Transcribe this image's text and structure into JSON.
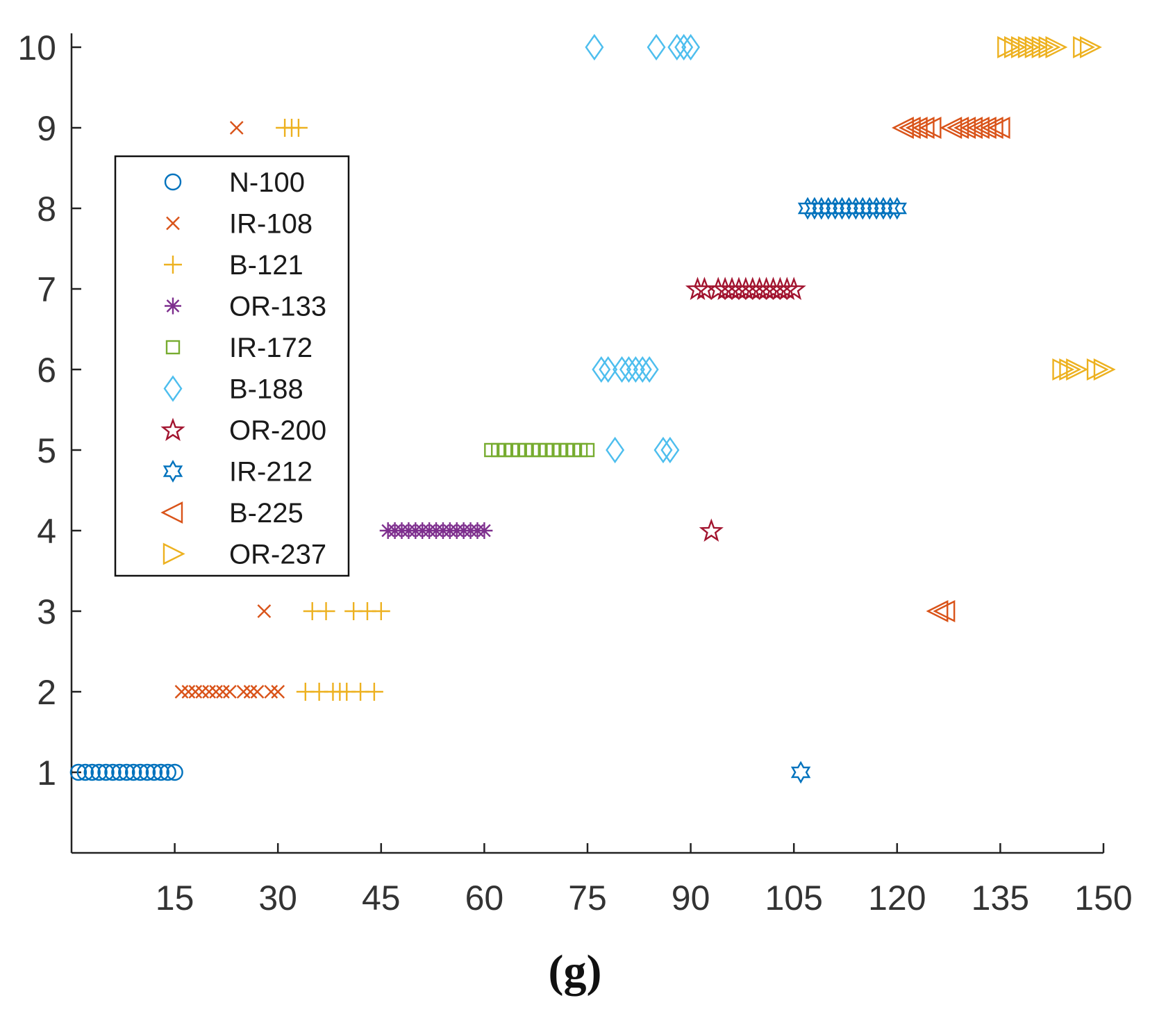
{
  "chart_data": {
    "type": "scatter",
    "title": "",
    "xlabel": "",
    "ylabel": "",
    "caption": "(g)",
    "xlim": [
      0,
      150
    ],
    "ylim": [
      0,
      10.5
    ],
    "xticks": [
      15,
      30,
      45,
      60,
      75,
      90,
      105,
      120,
      135,
      150
    ],
    "yticks": [
      1,
      2,
      3,
      4,
      5,
      6,
      7,
      8,
      9,
      10
    ],
    "grid": false,
    "legend_position": "upper-left",
    "series": [
      {
        "name": "N-100",
        "marker": "circle",
        "color": "#0072BD",
        "points": [
          [
            1,
            1
          ],
          [
            2,
            1
          ],
          [
            3,
            1
          ],
          [
            4,
            1
          ],
          [
            5,
            1
          ],
          [
            6,
            1
          ],
          [
            7,
            1
          ],
          [
            8,
            1
          ],
          [
            9,
            1
          ],
          [
            10,
            1
          ],
          [
            11,
            1
          ],
          [
            12,
            1
          ],
          [
            13,
            1
          ],
          [
            14,
            1
          ],
          [
            15,
            1
          ]
        ]
      },
      {
        "name": "IR-108",
        "marker": "x",
        "color": "#D95319",
        "points": [
          [
            16,
            2
          ],
          [
            17,
            2
          ],
          [
            18,
            2
          ],
          [
            19,
            2
          ],
          [
            20,
            2
          ],
          [
            21,
            2
          ],
          [
            22,
            2
          ],
          [
            23,
            2
          ],
          [
            24,
            9
          ],
          [
            25,
            2
          ],
          [
            26,
            2
          ],
          [
            27,
            2
          ],
          [
            28,
            3
          ],
          [
            29,
            2
          ],
          [
            30,
            2
          ]
        ]
      },
      {
        "name": "B-121",
        "marker": "plus",
        "color": "#EDB120",
        "points": [
          [
            31,
            9
          ],
          [
            32,
            9
          ],
          [
            33,
            9
          ],
          [
            34,
            2
          ],
          [
            35,
            3
          ],
          [
            36,
            2
          ],
          [
            37,
            3
          ],
          [
            38,
            2
          ],
          [
            39,
            2
          ],
          [
            40,
            2
          ],
          [
            41,
            3
          ],
          [
            42,
            2
          ],
          [
            43,
            3
          ],
          [
            44,
            2
          ],
          [
            45,
            3
          ]
        ]
      },
      {
        "name": "OR-133",
        "marker": "asterisk",
        "color": "#7E2F8E",
        "points": [
          [
            46,
            4
          ],
          [
            47,
            4
          ],
          [
            48,
            4
          ],
          [
            49,
            4
          ],
          [
            50,
            4
          ],
          [
            51,
            4
          ],
          [
            52,
            4
          ],
          [
            53,
            4
          ],
          [
            54,
            4
          ],
          [
            55,
            4
          ],
          [
            56,
            4
          ],
          [
            57,
            4
          ],
          [
            58,
            4
          ],
          [
            59,
            4
          ],
          [
            60,
            4
          ]
        ]
      },
      {
        "name": "IR-172",
        "marker": "square",
        "color": "#77AC30",
        "points": [
          [
            61,
            5
          ],
          [
            62,
            5
          ],
          [
            63,
            5
          ],
          [
            64,
            5
          ],
          [
            65,
            5
          ],
          [
            66,
            5
          ],
          [
            67,
            5
          ],
          [
            68,
            5
          ],
          [
            69,
            5
          ],
          [
            70,
            5
          ],
          [
            71,
            5
          ],
          [
            72,
            5
          ],
          [
            73,
            5
          ],
          [
            74,
            5
          ],
          [
            75,
            5
          ]
        ]
      },
      {
        "name": "B-188",
        "marker": "diamond",
        "color": "#4DBEEE",
        "points": [
          [
            76,
            10
          ],
          [
            77,
            6
          ],
          [
            78,
            6
          ],
          [
            79,
            5
          ],
          [
            80,
            6
          ],
          [
            81,
            6
          ],
          [
            82,
            6
          ],
          [
            83,
            6
          ],
          [
            84,
            6
          ],
          [
            85,
            10
          ],
          [
            86,
            5
          ],
          [
            87,
            5
          ],
          [
            88,
            10
          ],
          [
            89,
            10
          ],
          [
            90,
            10
          ]
        ]
      },
      {
        "name": "OR-200",
        "marker": "star5",
        "color": "#A2142F",
        "points": [
          [
            91,
            7
          ],
          [
            92,
            7
          ],
          [
            93,
            4
          ],
          [
            94,
            7
          ],
          [
            95,
            7
          ],
          [
            96,
            7
          ],
          [
            97,
            7
          ],
          [
            98,
            7
          ],
          [
            99,
            7
          ],
          [
            100,
            7
          ],
          [
            101,
            7
          ],
          [
            102,
            7
          ],
          [
            103,
            7
          ],
          [
            104,
            7
          ],
          [
            105,
            7
          ]
        ]
      },
      {
        "name": "IR-212",
        "marker": "hexagram",
        "color": "#0072BD",
        "points": [
          [
            106,
            1
          ],
          [
            107,
            8
          ],
          [
            108,
            8
          ],
          [
            109,
            8
          ],
          [
            110,
            8
          ],
          [
            111,
            8
          ],
          [
            112,
            8
          ],
          [
            113,
            8
          ],
          [
            114,
            8
          ],
          [
            115,
            8
          ],
          [
            116,
            8
          ],
          [
            117,
            8
          ],
          [
            118,
            8
          ],
          [
            119,
            8
          ],
          [
            120,
            8
          ]
        ]
      },
      {
        "name": "B-225",
        "marker": "triangle-left",
        "color": "#D95319",
        "points": [
          [
            121,
            9
          ],
          [
            122,
            9
          ],
          [
            123,
            9
          ],
          [
            124,
            9
          ],
          [
            125,
            9
          ],
          [
            126,
            3
          ],
          [
            127,
            3
          ],
          [
            128,
            9
          ],
          [
            129,
            9
          ],
          [
            130,
            9
          ],
          [
            131,
            9
          ],
          [
            132,
            9
          ],
          [
            133,
            9
          ],
          [
            134,
            9
          ],
          [
            135,
            9
          ]
        ]
      },
      {
        "name": "OR-237",
        "marker": "triangle-right",
        "color": "#EDB120",
        "points": [
          [
            136,
            10
          ],
          [
            137,
            10
          ],
          [
            138,
            10
          ],
          [
            139,
            10
          ],
          [
            140,
            10
          ],
          [
            141,
            10
          ],
          [
            142,
            10
          ],
          [
            143,
            10
          ],
          [
            144,
            6
          ],
          [
            145,
            6
          ],
          [
            146,
            6
          ],
          [
            147,
            10
          ],
          [
            148,
            10
          ],
          [
            149,
            6
          ],
          [
            150,
            6
          ]
        ]
      }
    ]
  }
}
